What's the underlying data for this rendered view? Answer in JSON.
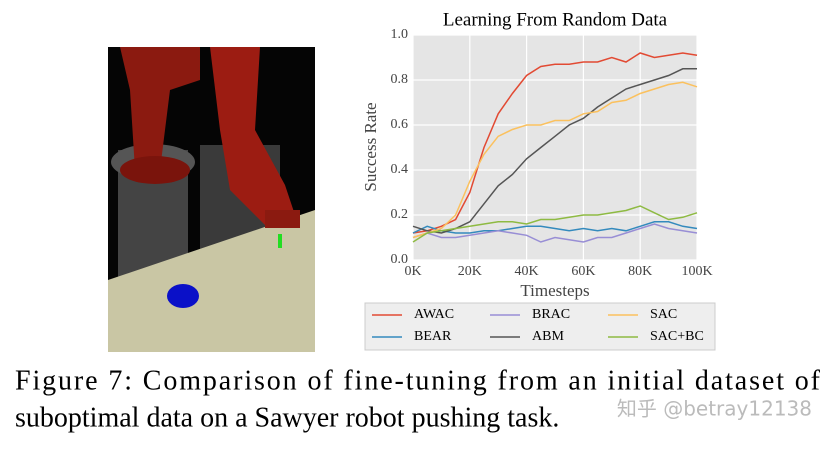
{
  "chart_data": {
    "type": "line",
    "title": "Learning From Random Data",
    "xlabel": "Timesteps",
    "ylabel": "Success Rate",
    "x": [
      0,
      5000,
      10000,
      15000,
      20000,
      25000,
      30000,
      35000,
      40000,
      45000,
      50000,
      55000,
      60000,
      65000,
      70000,
      75000,
      80000,
      85000,
      90000,
      95000,
      100000
    ],
    "xlim": [
      0,
      100000
    ],
    "xticks": [
      {
        "value": 0,
        "label": "0K"
      },
      {
        "value": 20000,
        "label": "20K"
      },
      {
        "value": 40000,
        "label": "40K"
      },
      {
        "value": 60000,
        "label": "60K"
      },
      {
        "value": 80000,
        "label": "80K"
      },
      {
        "value": 100000,
        "label": "100K"
      }
    ],
    "ylim": [
      0,
      1
    ],
    "yticks": [
      {
        "value": 0,
        "label": "0.0"
      },
      0.2,
      0.4,
      0.6,
      0.8,
      {
        "value": 1,
        "label": "1.0"
      }
    ],
    "grid": true,
    "series": [
      {
        "name": "AWAC",
        "color": "#e24a33",
        "values": [
          0.12,
          0.13,
          0.15,
          0.18,
          0.3,
          0.5,
          0.65,
          0.74,
          0.82,
          0.86,
          0.87,
          0.87,
          0.88,
          0.88,
          0.9,
          0.88,
          0.92,
          0.9,
          0.91,
          0.92,
          0.91
        ]
      },
      {
        "name": "BEAR",
        "color": "#348abd",
        "values": [
          0.12,
          0.15,
          0.13,
          0.12,
          0.12,
          0.13,
          0.13,
          0.14,
          0.15,
          0.15,
          0.14,
          0.13,
          0.14,
          0.13,
          0.14,
          0.13,
          0.15,
          0.17,
          0.17,
          0.15,
          0.14
        ]
      },
      {
        "name": "BRAC",
        "color": "#988ed5",
        "values": [
          0.1,
          0.12,
          0.1,
          0.1,
          0.11,
          0.12,
          0.13,
          0.12,
          0.11,
          0.08,
          0.1,
          0.09,
          0.08,
          0.1,
          0.1,
          0.12,
          0.14,
          0.16,
          0.14,
          0.13,
          0.12
        ]
      },
      {
        "name": "ABM",
        "color": "#555555",
        "values": [
          0.15,
          0.13,
          0.12,
          0.14,
          0.17,
          0.25,
          0.33,
          0.38,
          0.45,
          0.5,
          0.55,
          0.6,
          0.63,
          0.68,
          0.72,
          0.76,
          0.78,
          0.8,
          0.82,
          0.85,
          0.85
        ]
      },
      {
        "name": "SAC",
        "color": "#fbc15e",
        "values": [
          0.1,
          0.12,
          0.14,
          0.2,
          0.35,
          0.47,
          0.55,
          0.58,
          0.6,
          0.6,
          0.62,
          0.62,
          0.65,
          0.66,
          0.7,
          0.71,
          0.74,
          0.76,
          0.78,
          0.79,
          0.77
        ]
      },
      {
        "name": "SAC+BC",
        "color": "#8eba42",
        "values": [
          0.08,
          0.12,
          0.13,
          0.14,
          0.15,
          0.16,
          0.17,
          0.17,
          0.16,
          0.18,
          0.18,
          0.19,
          0.2,
          0.2,
          0.21,
          0.22,
          0.24,
          0.21,
          0.18,
          0.19,
          0.21
        ]
      }
    ]
  },
  "caption": [
    "Figure 7: Comparison of fine-tuning from an initial dataset of",
    "suboptimal data on a Sawyer robot pushing task."
  ],
  "watermark": "知乎 @betray12138"
}
